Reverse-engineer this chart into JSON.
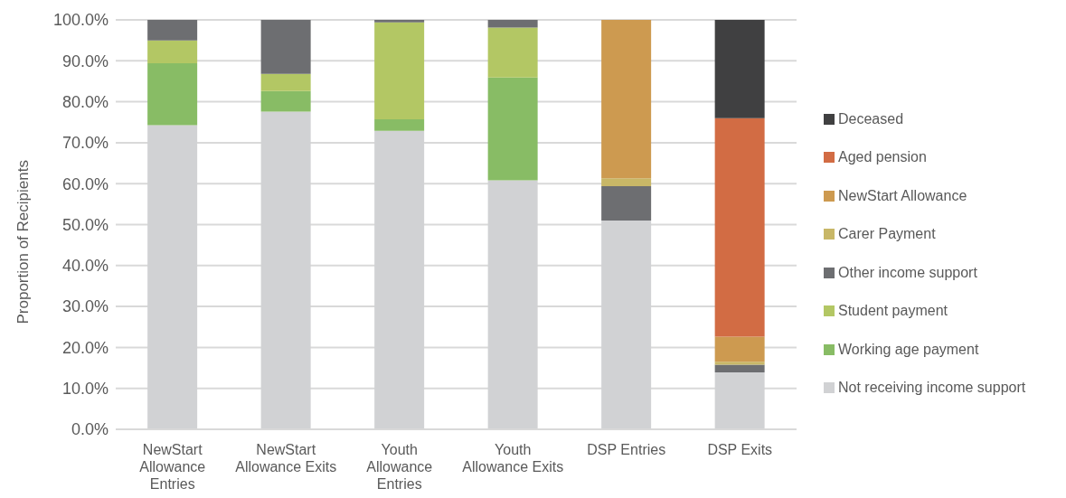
{
  "chart_data": {
    "type": "bar",
    "stacked": true,
    "ylabel": "Proportion of Recipients",
    "categories": [
      "NewStart Allowance Entries",
      "NewStart Allowance Exits",
      "Youth Allowance Entries",
      "Youth Allowance Exits",
      "DSP Entries",
      "DSP Exits"
    ],
    "series": [
      {
        "name": "Not receiving income support",
        "color": "#d1d2d4",
        "values": [
          74.3,
          77.6,
          72.9,
          60.8,
          51.0,
          13.9
        ]
      },
      {
        "name": "Working age payment",
        "color": "#88bc65",
        "values": [
          15.1,
          5.0,
          2.8,
          25.1,
          null,
          null
        ]
      },
      {
        "name": "Student payment",
        "color": "#b3c764",
        "values": [
          5.6,
          4.2,
          23.7,
          12.2,
          null,
          null
        ]
      },
      {
        "name": "Other income support",
        "color": "#6d6e71",
        "values": [
          5.0,
          13.2,
          0.6,
          1.9,
          8.4,
          1.9
        ]
      },
      {
        "name": "Carer Payment",
        "color": "#c8b767",
        "values": [
          null,
          null,
          null,
          null,
          1.9,
          0.7
        ]
      },
      {
        "name": "NewStart Allowance",
        "color": "#cd9a50",
        "values": [
          null,
          null,
          null,
          null,
          38.7,
          6.1
        ]
      },
      {
        "name": "Aged pension",
        "color": "#d26c44",
        "values": [
          null,
          null,
          null,
          null,
          null,
          53.4
        ]
      },
      {
        "name": "Deceased",
        "color": "#404041",
        "values": [
          null,
          null,
          null,
          null,
          null,
          24.0
        ]
      }
    ],
    "ylim": [
      0,
      100
    ],
    "yticks": [
      {
        "value": 0,
        "label": "0.0%"
      },
      {
        "value": 10,
        "label": "10.0%"
      },
      {
        "value": 20,
        "label": "20.0%"
      },
      {
        "value": 30,
        "label": "30.0%"
      },
      {
        "value": 40,
        "label": "40.0%"
      },
      {
        "value": 50,
        "label": "50.0%"
      },
      {
        "value": 60,
        "label": "60.0%"
      },
      {
        "value": 70,
        "label": "70.0%"
      },
      {
        "value": 80,
        "label": "80.0%"
      },
      {
        "value": 90,
        "label": "90.0%"
      },
      {
        "value": 100,
        "label": "100.0%"
      }
    ],
    "grid": "y",
    "legend": "right"
  }
}
